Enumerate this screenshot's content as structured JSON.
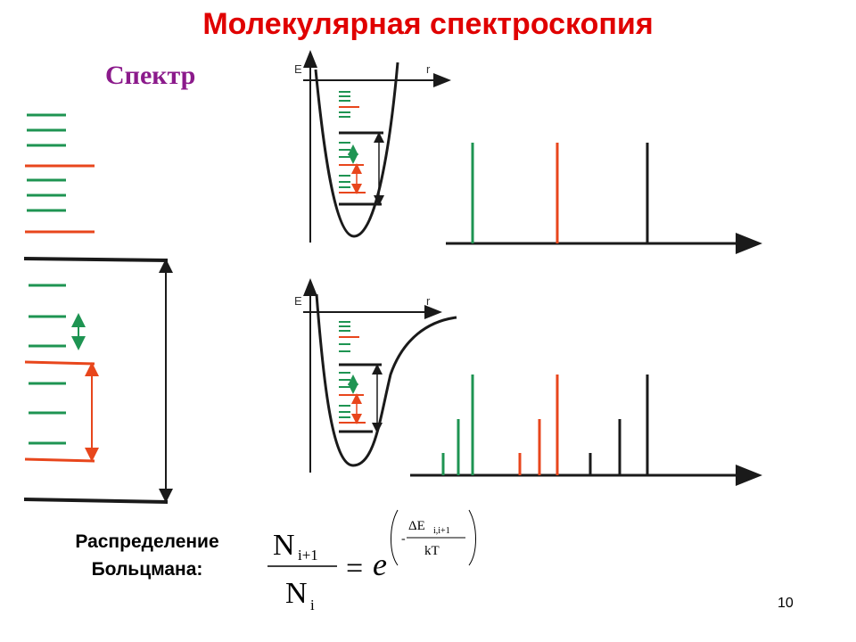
{
  "title": "Молекулярная спектроскопия",
  "subtitle": "Спектр",
  "boltzmann": {
    "label_line1": "Распределение",
    "label_line2": "Больцмана:",
    "formula": {
      "numerator_symbol": "N",
      "numerator_subscript": "i+1",
      "denominator_symbol": "N",
      "denominator_subscript": "i",
      "equals": "=",
      "base": "e",
      "exp_minus": "-",
      "exp_numerator": "ΔE",
      "exp_numerator_subscript": "i,i+1",
      "exp_denominator": "kT"
    }
  },
  "page_number": "10",
  "potential_diagrams": [
    {
      "name": "harmonic",
      "axis_e": "E",
      "axis_r": "r"
    },
    {
      "name": "anharmonic",
      "axis_e": "E",
      "axis_r": "r"
    }
  ],
  "colors": {
    "rotational": "#1e9452",
    "vibrational": "#e8461c",
    "electronic": "#1a1a1a",
    "title": "#e00000",
    "subtitle": "#8b1a8b"
  }
}
